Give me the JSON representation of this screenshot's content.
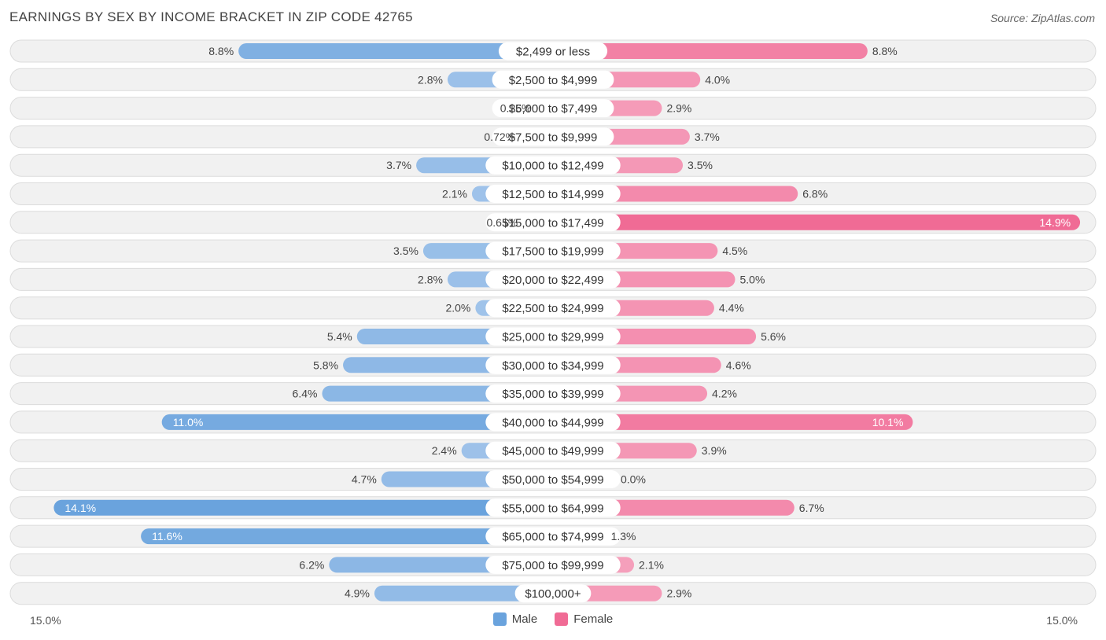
{
  "header": {
    "title": "EARNINGS BY SEX BY INCOME BRACKET IN ZIP CODE 42765",
    "source": "Source: ZipAtlas.com"
  },
  "axis": {
    "left_label": "15.0%",
    "right_label": "15.0%"
  },
  "legend": {
    "male_label": "Male",
    "female_label": "Female"
  },
  "colors": {
    "male_light": "#a8c8ec",
    "male_dark": "#6aa3dd",
    "female_light": "#f6a8c2",
    "female_dark": "#f06b95",
    "row_bg": "#f1f1f1",
    "row_border": "#dcdcdc"
  },
  "chart_data": {
    "type": "bar",
    "orientation": "horizontal-diverging",
    "title": "EARNINGS BY SEX BY INCOME BRACKET IN ZIP CODE 42765",
    "xlim": [
      -15.0,
      15.0
    ],
    "categories": [
      "$2,499 or less",
      "$2,500 to $4,999",
      "$5,000 to $7,499",
      "$7,500 to $9,999",
      "$10,000 to $12,499",
      "$12,500 to $14,999",
      "$15,000 to $17,499",
      "$17,500 to $19,999",
      "$20,000 to $22,499",
      "$22,500 to $24,999",
      "$25,000 to $29,999",
      "$30,000 to $34,999",
      "$35,000 to $39,999",
      "$40,000 to $44,999",
      "$45,000 to $49,999",
      "$50,000 to $54,999",
      "$55,000 to $64,999",
      "$65,000 to $74,999",
      "$75,000 to $99,999",
      "$100,000+"
    ],
    "series": [
      {
        "name": "Male",
        "values": [
          8.8,
          2.8,
          0.26,
          0.72,
          3.7,
          2.1,
          0.65,
          3.5,
          2.8,
          2.0,
          5.4,
          5.8,
          6.4,
          11.0,
          2.4,
          4.7,
          14.1,
          11.6,
          6.2,
          4.9
        ],
        "labels": [
          "8.8%",
          "2.8%",
          "0.26%",
          "0.72%",
          "3.7%",
          "2.1%",
          "0.65%",
          "3.5%",
          "2.8%",
          "2.0%",
          "5.4%",
          "5.8%",
          "6.4%",
          "11.0%",
          "2.4%",
          "4.7%",
          "14.1%",
          "11.6%",
          "6.2%",
          "4.9%"
        ]
      },
      {
        "name": "Female",
        "values": [
          8.8,
          4.0,
          2.9,
          3.7,
          3.5,
          6.8,
          14.9,
          4.5,
          5.0,
          4.4,
          5.6,
          4.6,
          4.2,
          10.1,
          3.9,
          0.0,
          6.7,
          1.3,
          2.1,
          2.9
        ],
        "labels": [
          "8.8%",
          "4.0%",
          "2.9%",
          "3.7%",
          "3.5%",
          "6.8%",
          "14.9%",
          "4.5%",
          "5.0%",
          "4.4%",
          "5.6%",
          "4.6%",
          "4.2%",
          "10.1%",
          "3.9%",
          "0.0%",
          "6.7%",
          "1.3%",
          "2.1%",
          "2.9%"
        ]
      }
    ]
  }
}
